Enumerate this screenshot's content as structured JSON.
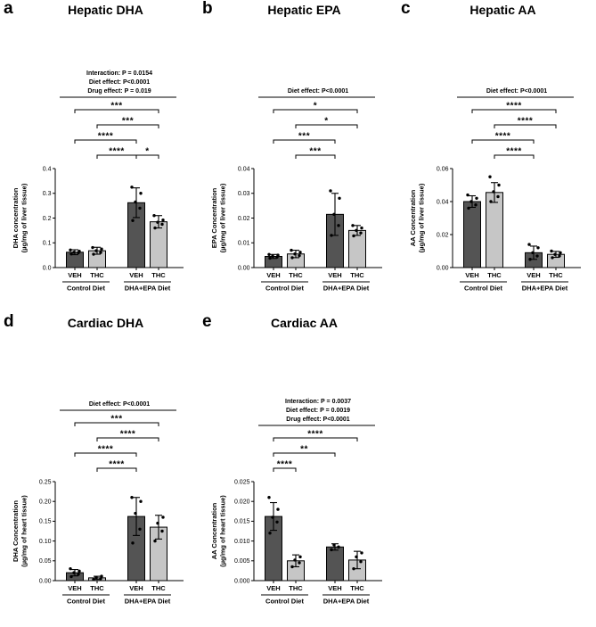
{
  "colors": {
    "veh_fill": "#545454",
    "thc_fill": "#c6c6c6",
    "outline": "#000000",
    "point": "#000000",
    "background": "#ffffff"
  },
  "chart_data": [
    {
      "type": "bar",
      "letter": "a",
      "title": "Hepatic DHA",
      "stats": [
        "Interaction: P = 0.0154",
        "Diet effect: P<0.0001",
        "Drug effect: P = 0.019"
      ],
      "ylabel": [
        "DHA concentration",
        "(µg/mg of liver tissue)"
      ],
      "ylim": [
        0,
        0.4
      ],
      "ytick_labels": [
        "0.0",
        "0.1",
        "0.2",
        "0.3",
        "0.4"
      ],
      "categories": [
        "VEH",
        "THC",
        "VEH",
        "THC"
      ],
      "group_labels": [
        "Control Diet",
        "DHA+EPA Diet"
      ],
      "values": [
        0.062,
        0.068,
        0.262,
        0.185
      ],
      "errors": [
        0.01,
        0.014,
        0.06,
        0.025
      ],
      "points": [
        [
          0.055,
          0.06,
          0.062,
          0.066,
          0.071
        ],
        [
          0.054,
          0.061,
          0.068,
          0.075,
          0.081
        ],
        [
          0.19,
          0.24,
          0.265,
          0.3,
          0.325
        ],
        [
          0.16,
          0.175,
          0.183,
          0.192,
          0.21
        ]
      ],
      "brackets": [
        {
          "from": 1,
          "to": 2,
          "label": "****",
          "level": 0
        },
        {
          "from": 2,
          "to": 3,
          "label": "*",
          "level": 0
        },
        {
          "from": 0,
          "to": 2,
          "label": "****",
          "level": 1
        },
        {
          "from": 1,
          "to": 3,
          "label": "***",
          "level": 2
        },
        {
          "from": 0,
          "to": 3,
          "label": "***",
          "level": 3
        }
      ]
    },
    {
      "type": "bar",
      "letter": "b",
      "title": "Hepatic EPA",
      "stats": [
        "Diet effect: P<0.0001"
      ],
      "ylabel": [
        "EPA Concentration",
        "(µg/mg of liver tissue)"
      ],
      "ylim": [
        0,
        0.04
      ],
      "ytick_labels": [
        "0.00",
        "0.01",
        "0.02",
        "0.03",
        "0.04"
      ],
      "categories": [
        "VEH",
        "THC",
        "VEH",
        "THC"
      ],
      "group_labels": [
        "Control Diet",
        "DHA+EPA Diet"
      ],
      "values": [
        0.0045,
        0.0055,
        0.0215,
        0.015
      ],
      "errors": [
        0.0008,
        0.0015,
        0.0085,
        0.002
      ],
      "points": [
        [
          0.0038,
          0.0042,
          0.0046,
          0.005,
          0.0053
        ],
        [
          0.004,
          0.0048,
          0.0055,
          0.0062,
          0.007
        ],
        [
          0.013,
          0.017,
          0.0215,
          0.028,
          0.031
        ],
        [
          0.0128,
          0.014,
          0.015,
          0.016,
          0.017
        ]
      ],
      "brackets": [
        {
          "from": 1,
          "to": 2,
          "label": "***",
          "level": 0
        },
        {
          "from": 0,
          "to": 2,
          "label": "***",
          "level": 1
        },
        {
          "from": 1,
          "to": 3,
          "label": "*",
          "level": 2
        },
        {
          "from": 0,
          "to": 3,
          "label": "*",
          "level": 3
        }
      ]
    },
    {
      "type": "bar",
      "letter": "c",
      "title": "Hepatic AA",
      "stats": [
        "Diet effect: P<0.0001"
      ],
      "ylabel": [
        "AA Concentration",
        "(µg/mg of liver tissue)"
      ],
      "ylim": [
        0,
        0.06
      ],
      "ytick_labels": [
        "0.00",
        "0.02",
        "0.04",
        "0.06"
      ],
      "categories": [
        "VEH",
        "THC",
        "VEH",
        "THC"
      ],
      "group_labels": [
        "Control Diet",
        "DHA+EPA Diet"
      ],
      "values": [
        0.04,
        0.0455,
        0.009,
        0.008
      ],
      "errors": [
        0.0035,
        0.006,
        0.004,
        0.0018
      ],
      "points": [
        [
          0.036,
          0.038,
          0.04,
          0.042,
          0.044
        ],
        [
          0.04,
          0.043,
          0.046,
          0.05,
          0.055
        ],
        [
          0.005,
          0.007,
          0.009,
          0.012,
          0.014
        ],
        [
          0.006,
          0.007,
          0.008,
          0.009,
          0.01
        ]
      ],
      "brackets": [
        {
          "from": 1,
          "to": 2,
          "label": "****",
          "level": 0
        },
        {
          "from": 0,
          "to": 2,
          "label": "****",
          "level": 1
        },
        {
          "from": 1,
          "to": 3,
          "label": "****",
          "level": 2
        },
        {
          "from": 0,
          "to": 3,
          "label": "****",
          "level": 3
        }
      ]
    },
    {
      "type": "bar",
      "letter": "d",
      "title": "Cardiac DHA",
      "stats": [
        "Diet effect: P<0.0001"
      ],
      "ylabel": [
        "DHA Concentration",
        "(µg/mg of heart tissue)"
      ],
      "ylim": [
        0,
        0.25
      ],
      "ytick_labels": [
        "0.00",
        "0.05",
        "0.10",
        "0.15",
        "0.20",
        "0.25"
      ],
      "categories": [
        "VEH",
        "THC",
        "VEH",
        "THC"
      ],
      "group_labels": [
        "Control Diet",
        "DHA+EPA Diet"
      ],
      "values": [
        0.02,
        0.007,
        0.162,
        0.135
      ],
      "errors": [
        0.008,
        0.004,
        0.048,
        0.03
      ],
      "points": [
        [
          0.01,
          0.016,
          0.02,
          0.024,
          0.03
        ],
        [
          0.003,
          0.005,
          0.008,
          0.011
        ],
        [
          0.095,
          0.13,
          0.17,
          0.2,
          0.21
        ],
        [
          0.1,
          0.125,
          0.145,
          0.16
        ]
      ],
      "brackets": [
        {
          "from": 1,
          "to": 2,
          "label": "****",
          "level": 0
        },
        {
          "from": 0,
          "to": 2,
          "label": "****",
          "level": 1
        },
        {
          "from": 1,
          "to": 3,
          "label": "****",
          "level": 2
        },
        {
          "from": 0,
          "to": 3,
          "label": "***",
          "level": 3
        }
      ]
    },
    {
      "type": "bar",
      "letter": "e",
      "title": "Cardiac AA",
      "stats": [
        "Interaction: P = 0.0037",
        "Diet effect: P = 0.0019",
        "Drug effect: P<0.0001"
      ],
      "ylabel": [
        "AA Concentration",
        "(µg/mg of heart tissue)"
      ],
      "ylim": [
        0,
        0.025
      ],
      "ytick_labels": [
        "0.000",
        "0.005",
        "0.010",
        "0.015",
        "0.020",
        "0.025"
      ],
      "categories": [
        "VEH",
        "THC",
        "VEH",
        "THC"
      ],
      "group_labels": [
        "Control Diet",
        "DHA+EPA Diet"
      ],
      "values": [
        0.0162,
        0.005,
        0.0085,
        0.0052
      ],
      "errors": [
        0.0035,
        0.0015,
        0.0008,
        0.0022
      ],
      "points": [
        [
          0.012,
          0.0148,
          0.016,
          0.018,
          0.021
        ],
        [
          0.0035,
          0.0045,
          0.0052,
          0.006
        ],
        [
          0.0078,
          0.0085,
          0.009
        ],
        [
          0.003,
          0.0048,
          0.006,
          0.007
        ]
      ],
      "brackets": [
        {
          "from": 0,
          "to": 1,
          "label": "****",
          "level": 0
        },
        {
          "from": 0,
          "to": 2,
          "label": "**",
          "level": 1
        },
        {
          "from": 0,
          "to": 3,
          "label": "****",
          "level": 2
        }
      ]
    }
  ]
}
